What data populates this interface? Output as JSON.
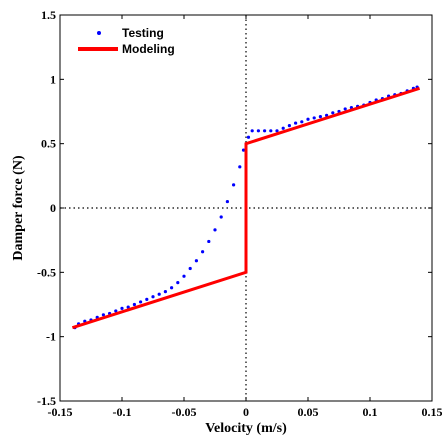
{
  "chart_data": {
    "type": "scatter",
    "xlabel": "Velocity (m/s)",
    "ylabel": "Damper force (N)",
    "xlim": [
      -0.15,
      0.15
    ],
    "ylim": [
      -1.5,
      1.5
    ],
    "xticks": [
      -0.15,
      -0.1,
      -0.05,
      0,
      0.05,
      0.1,
      0.15
    ],
    "xtick_labels": [
      "-0.15",
      "-0.1",
      "-0.05",
      "0",
      "0.05",
      "0.1",
      "0.15"
    ],
    "yticks": [
      -1.5,
      -1,
      -0.5,
      0,
      0.5,
      1,
      1.5
    ],
    "ytick_labels": [
      "-1.5",
      "-1",
      "-0.5",
      "0",
      "0.5",
      "1",
      "1.5"
    ],
    "grid": false,
    "zero_lines": "dotted",
    "legend": {
      "position": "top-left",
      "entries": [
        "Testing",
        "Modeling"
      ]
    },
    "series": [
      {
        "name": "Testing",
        "kind": "scatter",
        "color": "#0000ff",
        "x": [
          -0.138,
          -0.135,
          -0.13,
          -0.125,
          -0.12,
          -0.115,
          -0.11,
          -0.105,
          -0.1,
          -0.095,
          -0.09,
          -0.085,
          -0.08,
          -0.075,
          -0.07,
          -0.065,
          -0.06,
          -0.055,
          -0.05,
          -0.045,
          -0.04,
          -0.035,
          -0.03,
          -0.025,
          -0.02,
          -0.015,
          -0.01,
          -0.005,
          -0.002,
          0.002,
          0.005,
          0.01,
          0.015,
          0.02,
          0.025,
          0.03,
          0.035,
          0.04,
          0.045,
          0.05,
          0.055,
          0.06,
          0.065,
          0.07,
          0.075,
          0.08,
          0.085,
          0.09,
          0.095,
          0.1,
          0.105,
          0.11,
          0.115,
          0.12,
          0.125,
          0.13,
          0.135,
          0.138
        ],
        "y": [
          -0.93,
          -0.9,
          -0.88,
          -0.87,
          -0.85,
          -0.83,
          -0.82,
          -0.8,
          -0.78,
          -0.77,
          -0.75,
          -0.73,
          -0.71,
          -0.69,
          -0.67,
          -0.65,
          -0.62,
          -0.58,
          -0.53,
          -0.47,
          -0.41,
          -0.34,
          -0.26,
          -0.17,
          -0.07,
          0.05,
          0.18,
          0.32,
          0.45,
          0.55,
          0.6,
          0.6,
          0.6,
          0.6,
          0.6,
          0.62,
          0.64,
          0.66,
          0.67,
          0.69,
          0.7,
          0.71,
          0.72,
          0.74,
          0.75,
          0.77,
          0.78,
          0.79,
          0.8,
          0.82,
          0.84,
          0.85,
          0.87,
          0.88,
          0.89,
          0.91,
          0.93,
          0.94
        ]
      },
      {
        "name": "Modeling",
        "kind": "line",
        "color": "#ff0000",
        "x": [
          -0.14,
          0,
          0,
          0.14
        ],
        "y": [
          -0.93,
          -0.5,
          0.5,
          0.93
        ]
      }
    ]
  }
}
